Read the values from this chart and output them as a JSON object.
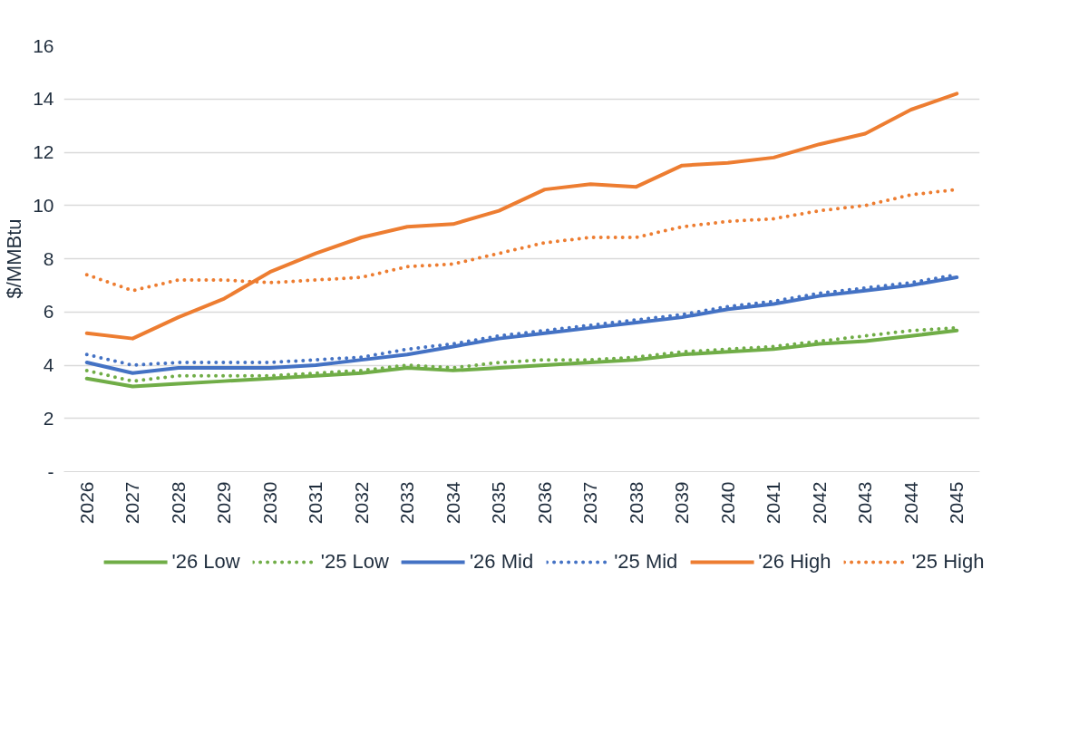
{
  "chart_data": {
    "type": "line",
    "ylabel": "$/MMBtu",
    "categories": [
      "2026",
      "2027",
      "2028",
      "2029",
      "2030",
      "2031",
      "2032",
      "2033",
      "2034",
      "2035",
      "2036",
      "2037",
      "2038",
      "2039",
      "2040",
      "2041",
      "2042",
      "2043",
      "2044",
      "2045"
    ],
    "series": [
      {
        "name": "'26 Low",
        "color": "#70ad47",
        "line_style": "solid",
        "values": [
          3.5,
          3.2,
          3.3,
          3.4,
          3.5,
          3.6,
          3.7,
          3.9,
          3.8,
          3.9,
          4.0,
          4.1,
          4.2,
          4.4,
          4.5,
          4.6,
          4.8,
          4.9,
          5.1,
          5.3
        ]
      },
      {
        "name": "'25 Low",
        "color": "#70ad47",
        "line_style": "dotted",
        "values": [
          3.8,
          3.4,
          3.6,
          3.6,
          3.6,
          3.7,
          3.8,
          4.0,
          3.9,
          4.1,
          4.2,
          4.2,
          4.3,
          4.5,
          4.6,
          4.7,
          4.9,
          5.1,
          5.3,
          5.4
        ]
      },
      {
        "name": "'26 Mid",
        "color": "#4472c4",
        "line_style": "solid",
        "values": [
          4.1,
          3.7,
          3.9,
          3.9,
          3.9,
          4.0,
          4.2,
          4.4,
          4.7,
          5.0,
          5.2,
          5.4,
          5.6,
          5.8,
          6.1,
          6.3,
          6.6,
          6.8,
          7.0,
          7.3
        ]
      },
      {
        "name": "'25 Mid",
        "color": "#4472c4",
        "line_style": "dotted",
        "values": [
          4.4,
          4.0,
          4.1,
          4.1,
          4.1,
          4.2,
          4.3,
          4.6,
          4.8,
          5.1,
          5.3,
          5.5,
          5.7,
          5.9,
          6.2,
          6.4,
          6.7,
          6.9,
          7.1,
          7.4
        ]
      },
      {
        "name": "'26 High",
        "color": "#ed7d31",
        "line_style": "solid",
        "values": [
          5.2,
          5.0,
          5.8,
          6.5,
          7.5,
          8.2,
          8.8,
          9.2,
          9.3,
          9.8,
          10.6,
          10.8,
          10.7,
          11.5,
          11.6,
          11.8,
          12.3,
          12.7,
          13.6,
          14.2
        ]
      },
      {
        "name": "'25 High",
        "color": "#ed7d31",
        "line_style": "dotted",
        "values": [
          7.4,
          6.8,
          7.2,
          7.2,
          7.1,
          7.2,
          7.3,
          7.7,
          7.8,
          8.2,
          8.6,
          8.8,
          8.8,
          9.2,
          9.4,
          9.5,
          9.8,
          10.0,
          10.4,
          10.6
        ]
      }
    ],
    "ylim": [
      0,
      16
    ],
    "yticks": [
      {
        "value": 0,
        "label": "-"
      },
      2,
      4,
      6,
      8,
      10,
      12,
      14,
      16
    ],
    "grid": "y",
    "legend": "bottom",
    "marker": "none"
  }
}
